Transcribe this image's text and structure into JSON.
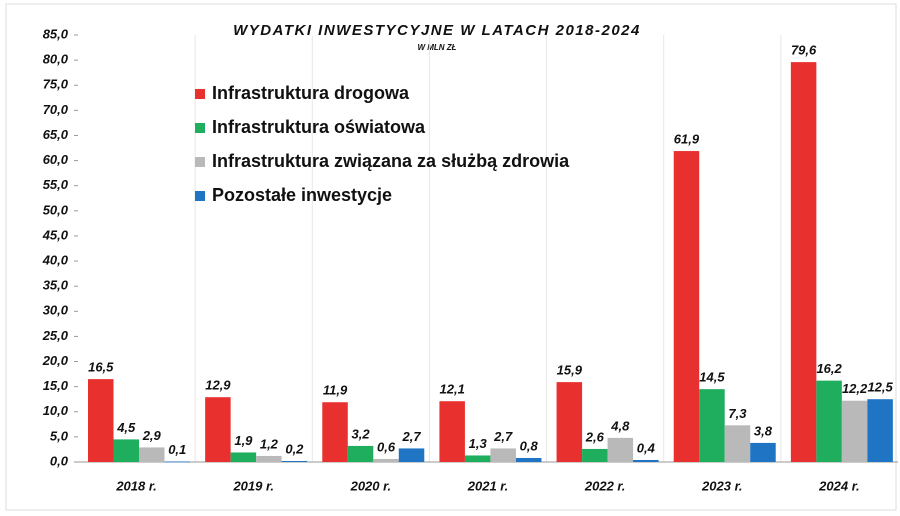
{
  "chart_data": {
    "type": "bar",
    "title": "WYDATKI INWESTYCYJNE W LATACH 2018-2024",
    "subtitle": "W MLN ZŁ",
    "categories": [
      "2018 r.",
      "2019 r.",
      "2020 r.",
      "2021 r.",
      "2022 r.",
      "2023 r.",
      "2024 r."
    ],
    "series": [
      {
        "name": "Infrastruktura drogowa",
        "color": "#e8312f",
        "values": [
          16.5,
          12.9,
          11.9,
          12.1,
          15.9,
          61.9,
          79.6
        ],
        "value_labels": [
          "16,5",
          "12,9",
          "11,9",
          "12,1",
          "15,9",
          "61,9",
          "79,6"
        ]
      },
      {
        "name": "Infrastruktura oświatowa",
        "color": "#1fae5e",
        "values": [
          4.5,
          1.9,
          3.2,
          1.3,
          2.6,
          14.5,
          16.2
        ],
        "value_labels": [
          "4,5",
          "1,9",
          "3,2",
          "1,3",
          "2,6",
          "14,5",
          "16,2"
        ]
      },
      {
        "name": "Infrastruktura związana za służbą zdrowia",
        "color": "#b9b9b9",
        "values": [
          2.9,
          1.2,
          0.6,
          2.7,
          4.8,
          7.3,
          12.2
        ],
        "value_labels": [
          "2,9",
          "1,2",
          "0,6",
          "2,7",
          "4,8",
          "7,3",
          "12,2"
        ]
      },
      {
        "name": "Pozostałe inwestycje",
        "color": "#1f74c4",
        "values": [
          0.1,
          0.2,
          2.7,
          0.8,
          0.4,
          3.8,
          12.5
        ],
        "value_labels": [
          "0,1",
          "0,2",
          "2,7",
          "0,8",
          "0,4",
          "3,8",
          "12,5"
        ]
      }
    ],
    "ylim": [
      0,
      85
    ],
    "yticks": [
      {
        "value": 0,
        "label": "0,0"
      },
      {
        "value": 5,
        "label": "5,0"
      },
      {
        "value": 10,
        "label": "10,0"
      },
      {
        "value": 15,
        "label": "15,0"
      },
      {
        "value": 20,
        "label": "20,0"
      },
      {
        "value": 25,
        "label": "25,0"
      },
      {
        "value": 30,
        "label": "30,0"
      },
      {
        "value": 35,
        "label": "35,0"
      },
      {
        "value": 40,
        "label": "40,0"
      },
      {
        "value": 45,
        "label": "45,0"
      },
      {
        "value": 50,
        "label": "50,0"
      },
      {
        "value": 55,
        "label": "55,0"
      },
      {
        "value": 60,
        "label": "60,0"
      },
      {
        "value": 65,
        "label": "65,0"
      },
      {
        "value": 70,
        "label": "70,0"
      },
      {
        "value": 75,
        "label": "75,0"
      },
      {
        "value": 80,
        "label": "80,0"
      },
      {
        "value": 85,
        "label": "85,0"
      }
    ],
    "legend": "upper left"
  }
}
